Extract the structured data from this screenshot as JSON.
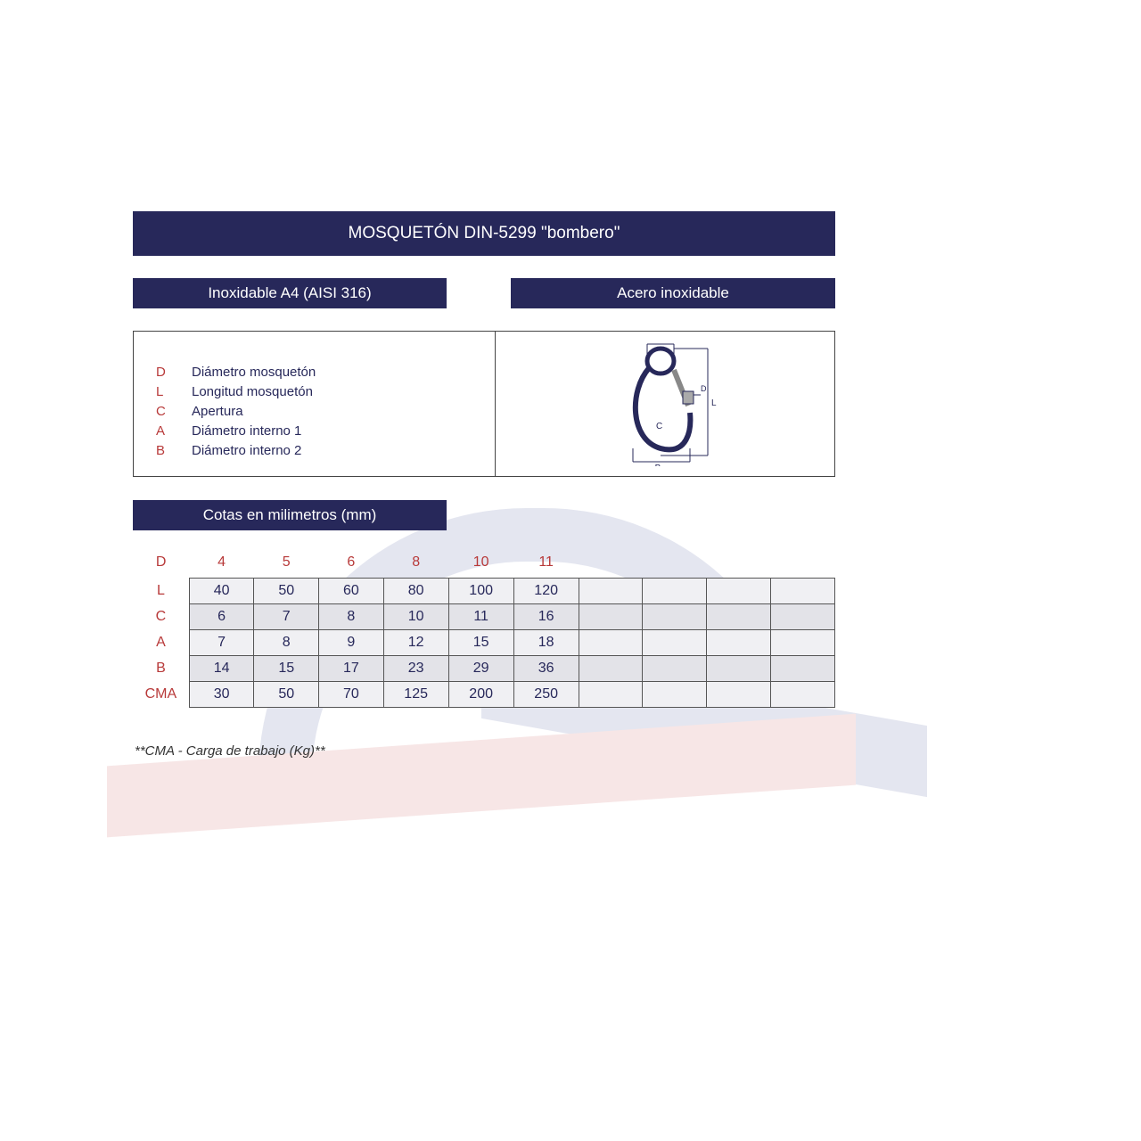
{
  "title": "MOSQUETÓN DIN-5299 \"bombero\"",
  "subheaders": {
    "left": "Inoxidable A4 (AISI 316)",
    "right": "Acero inoxidable"
  },
  "legend": [
    {
      "sym": "D",
      "desc": "Diámetro mosquetón"
    },
    {
      "sym": "L",
      "desc": "Longitud mosquetón"
    },
    {
      "sym": "C",
      "desc": "Apertura"
    },
    {
      "sym": "A",
      "desc": "Diámetro interno 1"
    },
    {
      "sym": "B",
      "desc": "Diámetro interno 2"
    }
  ],
  "diagram_labels": {
    "A": "A",
    "B": "B",
    "C": "C",
    "D": "D",
    "L": "L"
  },
  "cotas_header": "Cotas en milimetros (mm)",
  "dim_table": {
    "row_labels": [
      "D",
      "L",
      "C",
      "A",
      "B",
      "CMA"
    ],
    "total_cols": 10,
    "header": [
      "4",
      "5",
      "6",
      "8",
      "10",
      "11",
      "",
      "",
      "",
      ""
    ],
    "L": [
      "40",
      "50",
      "60",
      "80",
      "100",
      "120",
      "",
      "",
      "",
      ""
    ],
    "C": [
      "6",
      "7",
      "8",
      "10",
      "11",
      "16",
      "",
      "",
      "",
      ""
    ],
    "A": [
      "7",
      "8",
      "9",
      "12",
      "15",
      "18",
      "",
      "",
      "",
      ""
    ],
    "B": [
      "14",
      "15",
      "17",
      "23",
      "29",
      "36",
      "",
      "",
      "",
      ""
    ],
    "CMA": [
      "30",
      "50",
      "70",
      "125",
      "200",
      "250",
      "",
      "",
      "",
      ""
    ]
  },
  "footnote": "**CMA - Carga de trabajo (Kg)**",
  "colors": {
    "bar_bg": "#27285a",
    "bar_text": "#ffffff",
    "symbol": "#b83a3a",
    "desc": "#27285a",
    "cell_text": "#27285a",
    "cell_bg_even": "#f0f0f3",
    "cell_bg_odd": "#e3e3e8",
    "border": "#555555"
  }
}
